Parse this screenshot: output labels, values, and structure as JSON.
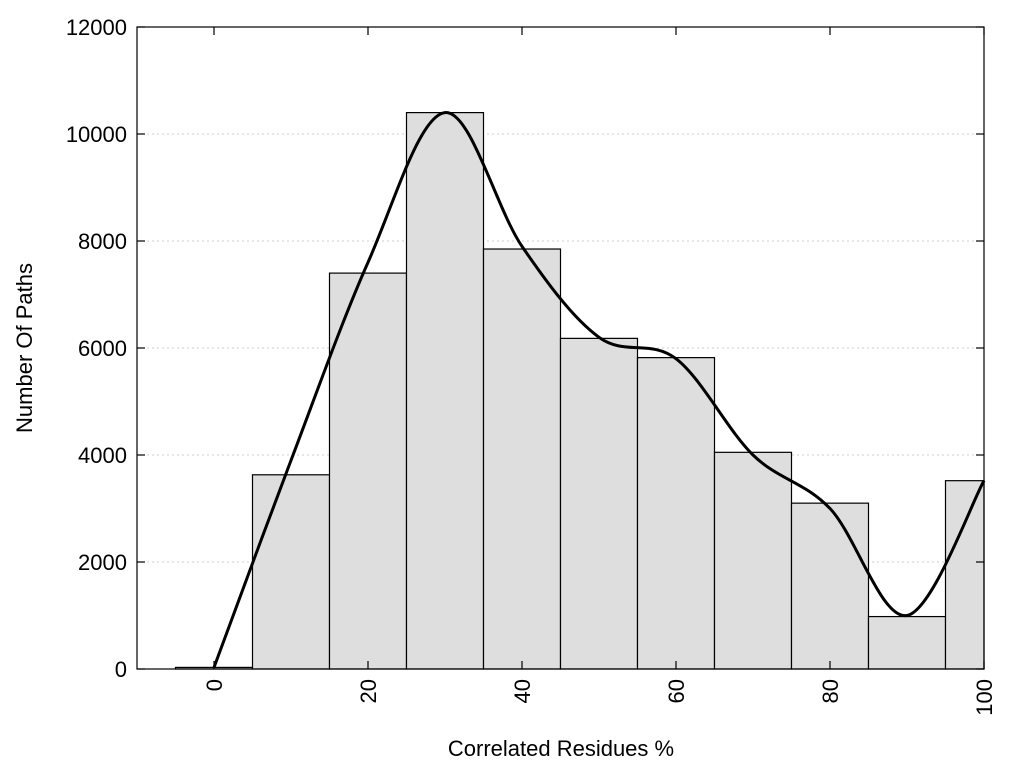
{
  "chart_data": {
    "type": "bar",
    "title": "",
    "xlabel": "Correlated Residues %",
    "ylabel": "Number Of Paths",
    "xlim": [
      -10,
      100
    ],
    "ylim": [
      0,
      12000
    ],
    "grid": "horizontal-dotted",
    "legend": "none",
    "bar_width": 10,
    "bar_color": "#dedede",
    "curve_color": "#000000",
    "x_ticks": [
      0,
      20,
      40,
      60,
      80,
      100
    ],
    "y_ticks": [
      0,
      2000,
      4000,
      6000,
      8000,
      10000,
      12000
    ],
    "bars": {
      "x": [
        0,
        10,
        20,
        30,
        40,
        50,
        60,
        70,
        80,
        90,
        100
      ],
      "values": [
        30,
        3630,
        7400,
        10400,
        7850,
        6180,
        5820,
        4050,
        3100,
        980,
        3520
      ]
    },
    "smooth_curve": {
      "x": [
        0,
        10,
        20,
        30,
        40,
        50,
        60,
        70,
        80,
        90,
        100
      ],
      "values": [
        30,
        3900,
        7600,
        10400,
        7900,
        6200,
        5800,
        4000,
        3000,
        1000,
        3520
      ]
    }
  }
}
